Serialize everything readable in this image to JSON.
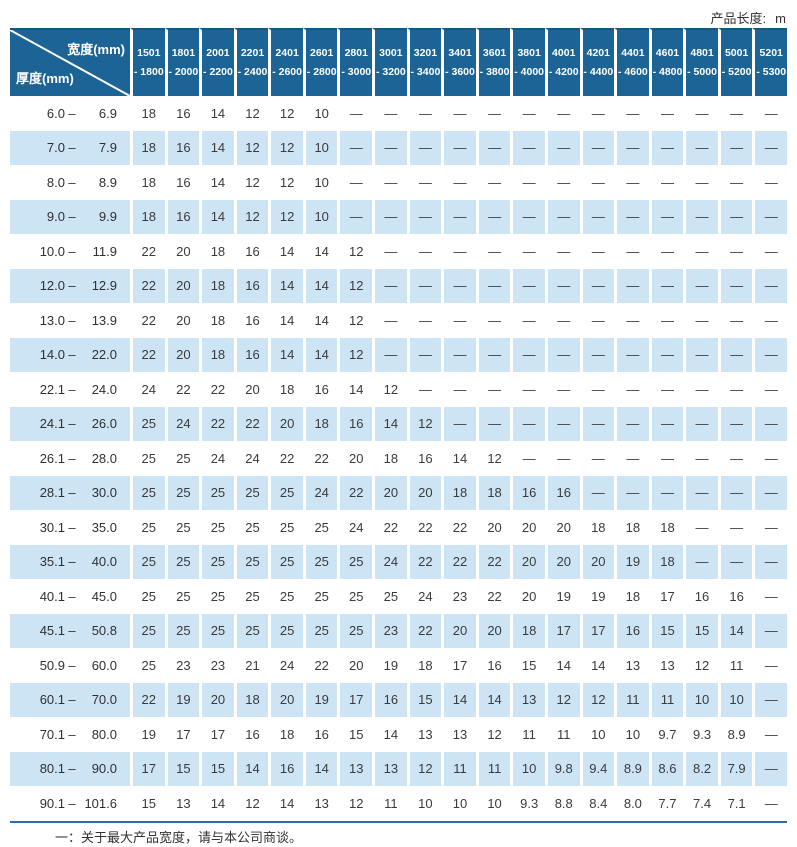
{
  "header_note": {
    "label": "产品长度:",
    "unit": "m"
  },
  "footnote": "一：关于最大产品宽度，请与本公司商谈。",
  "colors": {
    "header_bg": "#1c6496",
    "header_edge": "#175682",
    "row_alt_bg": "#cde4f5",
    "rule_line": "#2c6ea5",
    "cell_text": "#3b3b3b"
  },
  "table": {
    "corner": {
      "width_label": "宽度(mm)",
      "thickness_label": "厚度(mm)"
    },
    "range_separator": "–",
    "dash": "—",
    "columns": [
      {
        "line1": "1501",
        "line2": "- 1800"
      },
      {
        "line1": "1801",
        "line2": "- 2000"
      },
      {
        "line1": "2001",
        "line2": "- 2200"
      },
      {
        "line1": "2201",
        "line2": "- 2400"
      },
      {
        "line1": "2401",
        "line2": "- 2600"
      },
      {
        "line1": "2601",
        "line2": "- 2800"
      },
      {
        "line1": "2801",
        "line2": "- 3000"
      },
      {
        "line1": "3001",
        "line2": "- 3200"
      },
      {
        "line1": "3201",
        "line2": "- 3400"
      },
      {
        "line1": "3401",
        "line2": "- 3600"
      },
      {
        "line1": "3601",
        "line2": "- 3800"
      },
      {
        "line1": "3801",
        "line2": "- 4000"
      },
      {
        "line1": "4001",
        "line2": "- 4200"
      },
      {
        "line1": "4201",
        "line2": "- 4400"
      },
      {
        "line1": "4401",
        "line2": "- 4600"
      },
      {
        "line1": "4601",
        "line2": "- 4800"
      },
      {
        "line1": "4801",
        "line2": "- 5000"
      },
      {
        "line1": "5001",
        "line2": "- 5200"
      },
      {
        "line1": "5201",
        "line2": "- 5300"
      }
    ],
    "rows": [
      {
        "lo": "6.0",
        "hi": "6.9",
        "values": [
          "18",
          "16",
          "14",
          "12",
          "12",
          "10",
          "—",
          "—",
          "—",
          "—",
          "—",
          "—",
          "—",
          "—",
          "—",
          "—",
          "—",
          "—",
          "—"
        ]
      },
      {
        "lo": "7.0",
        "hi": "7.9",
        "values": [
          "18",
          "16",
          "14",
          "12",
          "12",
          "10",
          "—",
          "—",
          "—",
          "—",
          "—",
          "—",
          "—",
          "—",
          "—",
          "—",
          "—",
          "—",
          "—"
        ]
      },
      {
        "lo": "8.0",
        "hi": "8.9",
        "values": [
          "18",
          "16",
          "14",
          "12",
          "12",
          "10",
          "—",
          "—",
          "—",
          "—",
          "—",
          "—",
          "—",
          "—",
          "—",
          "—",
          "—",
          "—",
          "—"
        ]
      },
      {
        "lo": "9.0",
        "hi": "9.9",
        "values": [
          "18",
          "16",
          "14",
          "12",
          "12",
          "10",
          "—",
          "—",
          "—",
          "—",
          "—",
          "—",
          "—",
          "—",
          "—",
          "—",
          "—",
          "—",
          "—"
        ]
      },
      {
        "lo": "10.0",
        "hi": "11.9",
        "values": [
          "22",
          "20",
          "18",
          "16",
          "14",
          "14",
          "12",
          "—",
          "—",
          "—",
          "—",
          "—",
          "—",
          "—",
          "—",
          "—",
          "—",
          "—",
          "—"
        ]
      },
      {
        "lo": "12.0",
        "hi": "12.9",
        "values": [
          "22",
          "20",
          "18",
          "16",
          "14",
          "14",
          "12",
          "—",
          "—",
          "—",
          "—",
          "—",
          "—",
          "—",
          "—",
          "—",
          "—",
          "—",
          "—"
        ]
      },
      {
        "lo": "13.0",
        "hi": "13.9",
        "values": [
          "22",
          "20",
          "18",
          "16",
          "14",
          "14",
          "12",
          "—",
          "—",
          "—",
          "—",
          "—",
          "—",
          "—",
          "—",
          "—",
          "—",
          "—",
          "—"
        ]
      },
      {
        "lo": "14.0",
        "hi": "22.0",
        "values": [
          "22",
          "20",
          "18",
          "16",
          "14",
          "14",
          "12",
          "—",
          "—",
          "—",
          "—",
          "—",
          "—",
          "—",
          "—",
          "—",
          "—",
          "—",
          "—"
        ]
      },
      {
        "lo": "22.1",
        "hi": "24.0",
        "values": [
          "24",
          "22",
          "22",
          "20",
          "18",
          "16",
          "14",
          "12",
          "—",
          "—",
          "—",
          "—",
          "—",
          "—",
          "—",
          "—",
          "—",
          "—",
          "—"
        ]
      },
      {
        "lo": "24.1",
        "hi": "26.0",
        "values": [
          "25",
          "24",
          "22",
          "22",
          "20",
          "18",
          "16",
          "14",
          "12",
          "—",
          "—",
          "—",
          "—",
          "—",
          "—",
          "—",
          "—",
          "—",
          "—"
        ]
      },
      {
        "lo": "26.1",
        "hi": "28.0",
        "values": [
          "25",
          "25",
          "24",
          "24",
          "22",
          "22",
          "20",
          "18",
          "16",
          "14",
          "12",
          "—",
          "—",
          "—",
          "—",
          "—",
          "—",
          "—",
          "—"
        ]
      },
      {
        "lo": "28.1",
        "hi": "30.0",
        "values": [
          "25",
          "25",
          "25",
          "25",
          "25",
          "24",
          "22",
          "20",
          "20",
          "18",
          "18",
          "16",
          "16",
          "—",
          "—",
          "—",
          "—",
          "—",
          "—"
        ]
      },
      {
        "lo": "30.1",
        "hi": "35.0",
        "values": [
          "25",
          "25",
          "25",
          "25",
          "25",
          "25",
          "24",
          "22",
          "22",
          "22",
          "20",
          "20",
          "20",
          "18",
          "18",
          "18",
          "—",
          "—",
          "—"
        ]
      },
      {
        "lo": "35.1",
        "hi": "40.0",
        "values": [
          "25",
          "25",
          "25",
          "25",
          "25",
          "25",
          "25",
          "24",
          "22",
          "22",
          "22",
          "20",
          "20",
          "20",
          "19",
          "18",
          "—",
          "—",
          "—"
        ]
      },
      {
        "lo": "40.1",
        "hi": "45.0",
        "values": [
          "25",
          "25",
          "25",
          "25",
          "25",
          "25",
          "25",
          "25",
          "24",
          "23",
          "22",
          "20",
          "19",
          "19",
          "18",
          "17",
          "16",
          "16",
          "—"
        ]
      },
      {
        "lo": "45.1",
        "hi": "50.8",
        "values": [
          "25",
          "25",
          "25",
          "25",
          "25",
          "25",
          "25",
          "23",
          "22",
          "20",
          "20",
          "18",
          "17",
          "17",
          "16",
          "15",
          "15",
          "14",
          "—"
        ]
      },
      {
        "lo": "50.9",
        "hi": "60.0",
        "values": [
          "25",
          "23",
          "23",
          "21",
          "24",
          "22",
          "20",
          "19",
          "18",
          "17",
          "16",
          "15",
          "14",
          "14",
          "13",
          "13",
          "12",
          "11",
          "—"
        ]
      },
      {
        "lo": "60.1",
        "hi": "70.0",
        "values": [
          "22",
          "19",
          "20",
          "18",
          "20",
          "19",
          "17",
          "16",
          "15",
          "14",
          "14",
          "13",
          "12",
          "12",
          "11",
          "11",
          "10",
          "10",
          "—"
        ]
      },
      {
        "lo": "70.1",
        "hi": "80.0",
        "values": [
          "19",
          "17",
          "17",
          "16",
          "18",
          "16",
          "15",
          "14",
          "13",
          "13",
          "12",
          "11",
          "11",
          "10",
          "10",
          "9.7",
          "9.3",
          "8.9",
          "—"
        ]
      },
      {
        "lo": "80.1",
        "hi": "90.0",
        "values": [
          "17",
          "15",
          "15",
          "14",
          "16",
          "14",
          "13",
          "13",
          "12",
          "11",
          "11",
          "10",
          "9.8",
          "9.4",
          "8.9",
          "8.6",
          "8.2",
          "7.9",
          "—"
        ]
      },
      {
        "lo": "90.1",
        "hi": "101.6",
        "values": [
          "15",
          "13",
          "14",
          "12",
          "14",
          "13",
          "12",
          "11",
          "10",
          "10",
          "10",
          "9.3",
          "8.8",
          "8.4",
          "8.0",
          "7.7",
          "7.4",
          "7.1",
          "—"
        ]
      }
    ]
  }
}
